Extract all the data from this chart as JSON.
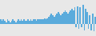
{
  "values": [
    3,
    2,
    3,
    2,
    1,
    3,
    2,
    1,
    2,
    3,
    2,
    1,
    2,
    3,
    2,
    3,
    2,
    3,
    2,
    2,
    3,
    2,
    3,
    2,
    3,
    3,
    2,
    3,
    3,
    3,
    3,
    3,
    4,
    3,
    4,
    5,
    6,
    7,
    6,
    5,
    6,
    7,
    8,
    7,
    6,
    7,
    8,
    9,
    8,
    7,
    8,
    9,
    10,
    9,
    11,
    -2,
    12,
    -3,
    11,
    -2,
    13,
    -4,
    10,
    8,
    -3,
    6,
    -4,
    7,
    -5,
    5
  ],
  "bar_color": "#5aabdc",
  "background_color": "#e8e8e8",
  "ylim_min": -8,
  "ylim_max": 16
}
